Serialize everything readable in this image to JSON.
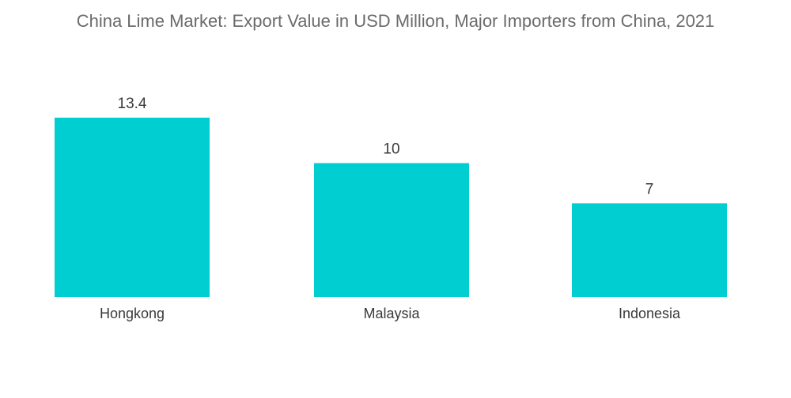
{
  "chart_data": {
    "type": "bar",
    "title": "China Lime Market: Export Value in USD Million, Major Importers from China, 2021",
    "categories": [
      "Hongkong",
      "Malaysia",
      "Indonesia"
    ],
    "values": [
      13.4,
      10,
      7
    ],
    "value_labels": [
      "13.4",
      "10",
      "7"
    ],
    "ylim": [
      0,
      13.4
    ],
    "xlabel": "",
    "ylabel": "",
    "grid": false,
    "bar_color": "#00CED1"
  }
}
